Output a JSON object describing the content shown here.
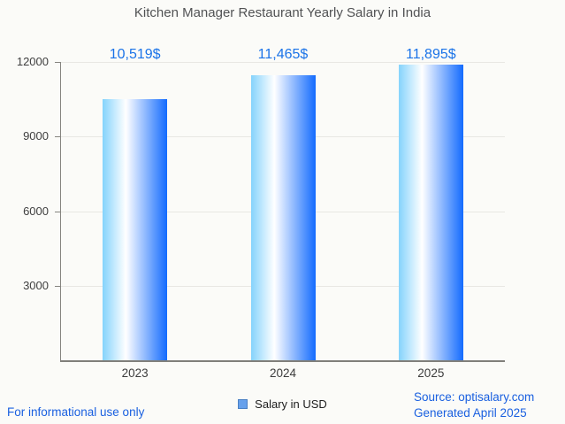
{
  "title": "Kitchen Manager Restaurant Yearly Salary in India",
  "chart_data": {
    "type": "bar",
    "title": "Kitchen Manager Restaurant Yearly Salary in India",
    "categories": [
      "2023",
      "2024",
      "2025"
    ],
    "series": [
      {
        "name": "Salary in USD",
        "values": [
          10519,
          11465,
          11895
        ],
        "value_labels": [
          "10,519$",
          "11,465$",
          "11,895$"
        ]
      }
    ],
    "xlabel": "",
    "ylabel": "",
    "ylim": [
      0,
      12000
    ],
    "yticks": [
      3000,
      6000,
      9000,
      12000
    ],
    "ytick_labels": [
      "3000",
      "6000",
      "9000",
      "12000"
    ],
    "grid": true,
    "legend_position": "bottom-center",
    "bar_gradient": [
      "#85d3fc",
      "#ffffff",
      "#136bfe"
    ]
  },
  "legend": {
    "label": "Salary in USD",
    "marker_color": "#67a1ec"
  },
  "footer": {
    "left_note": "For informational use only",
    "source_line1": "Source: optisalary.com",
    "source_line2": "Generated April 2025"
  },
  "colors": {
    "background": "#fbfbf8",
    "title_text": "#515254",
    "value_label": "#1a73e8",
    "footer_link": "#1a60e0",
    "axis": "#85847f",
    "gridline": "#e8e7e3",
    "tick_label": "#3f3f3f"
  }
}
